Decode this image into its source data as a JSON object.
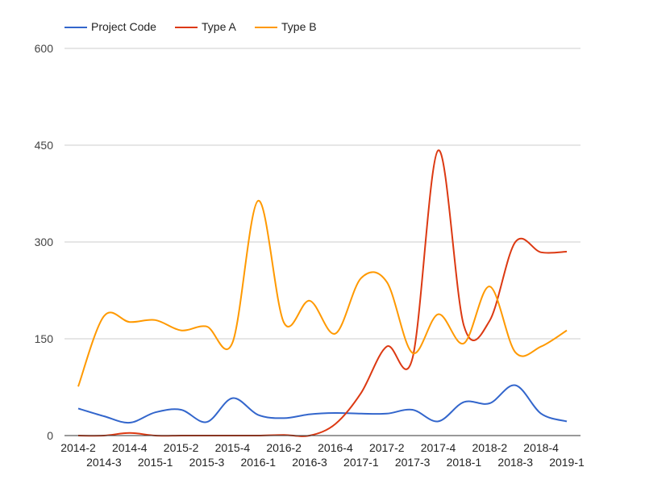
{
  "chart_data": {
    "type": "line",
    "title": "",
    "xlabel": "",
    "ylabel": "",
    "ylim": [
      0,
      600
    ],
    "yticks": [
      0,
      150,
      300,
      450,
      600
    ],
    "grid": true,
    "legend_position": "top-left",
    "categories": [
      "2014-2",
      "2014-3",
      "2014-4",
      "2015-1",
      "2015-2",
      "2015-3",
      "2015-4",
      "2016-1",
      "2016-2",
      "2016-3",
      "2016-4",
      "2017-1",
      "2017-2",
      "2017-3",
      "2017-4",
      "2018-1",
      "2018-2",
      "2018-3",
      "2018-4",
      "2019-1"
    ],
    "series": [
      {
        "name": "Project Code",
        "color": "#3366cc",
        "values": [
          42,
          30,
          20,
          36,
          40,
          21,
          58,
          32,
          27,
          33,
          35,
          34,
          34,
          40,
          22,
          52,
          50,
          78,
          34,
          22
        ]
      },
      {
        "name": "Type A",
        "color": "#dc3912",
        "values": [
          0,
          0,
          4,
          0,
          0,
          0,
          0,
          0,
          1,
          0,
          18,
          66,
          138,
          120,
          442,
          170,
          178,
          300,
          284,
          285
        ]
      },
      {
        "name": "Type B",
        "color": "#ff9900",
        "values": [
          76,
          185,
          176,
          179,
          163,
          169,
          144,
          364,
          175,
          209,
          158,
          244,
          238,
          128,
          188,
          143,
          231,
          129,
          138,
          163
        ]
      }
    ]
  }
}
